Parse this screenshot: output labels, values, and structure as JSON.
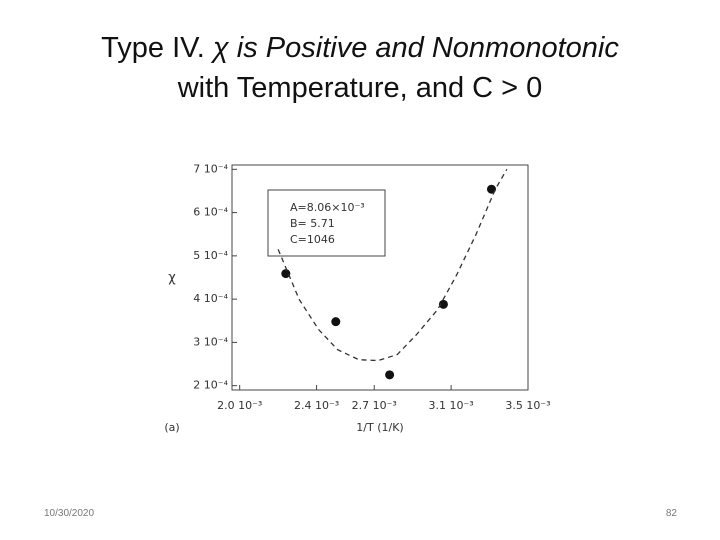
{
  "title_lead": "Type IV. ",
  "title_italic": "χ is Positive and Nonmonotonic",
  "title_line2": "with Temperature, and C > 0",
  "footer_date": "10/30/2020",
  "footer_page": "82",
  "chart_data": {
    "type": "scatter",
    "ylabel": "χ",
    "xlabel": "1/T (1/K)",
    "panel_label": "(a)",
    "annotation": [
      "A=8.06×10⁻³",
      "B=  5.71",
      "C=1046"
    ],
    "xlim": [
      0.00196,
      0.0035
    ],
    "ylim": [
      0.00019,
      0.00071
    ],
    "xticks": [
      {
        "value": 0.002,
        "label": "2.0 10⁻³"
      },
      {
        "value": 0.0024,
        "label": "2.4 10⁻³"
      },
      {
        "value": 0.0027,
        "label": "2.7 10⁻³"
      },
      {
        "value": 0.0031,
        "label": "3.1 10⁻³"
      },
      {
        "value": 0.0035,
        "label": "3.5 10⁻³"
      }
    ],
    "yticks": [
      {
        "value": 0.0002,
        "label": "2 10⁻⁴"
      },
      {
        "value": 0.0003,
        "label": "3 10⁻⁴"
      },
      {
        "value": 0.0004,
        "label": "4 10⁻⁴"
      },
      {
        "value": 0.0005,
        "label": "5 10⁻⁴"
      },
      {
        "value": 0.0006,
        "label": "6 10⁻⁴"
      },
      {
        "value": 0.0007,
        "label": "7 10⁻⁴"
      }
    ],
    "series": [
      {
        "style": "points",
        "color": "#111111",
        "x": [
          0.00224,
          0.0025,
          0.00278,
          0.00306,
          0.00331
        ],
        "values": [
          0.000459,
          0.000348,
          0.000225,
          0.000388,
          0.000654
        ]
      },
      {
        "style": "dashed-line",
        "color": "#333333",
        "x": [
          0.0022,
          0.00231,
          0.00241,
          0.00251,
          0.00262,
          0.00272,
          0.00282,
          0.00292,
          0.00303,
          0.00313,
          0.00323,
          0.00333,
          0.00339
        ],
        "values": [
          0.000515,
          0.000399,
          0.00033,
          0.000283,
          0.00026,
          0.000258,
          0.000272,
          0.000318,
          0.000376,
          0.000457,
          0.00055,
          0.000654,
          0.0007
        ]
      }
    ]
  }
}
